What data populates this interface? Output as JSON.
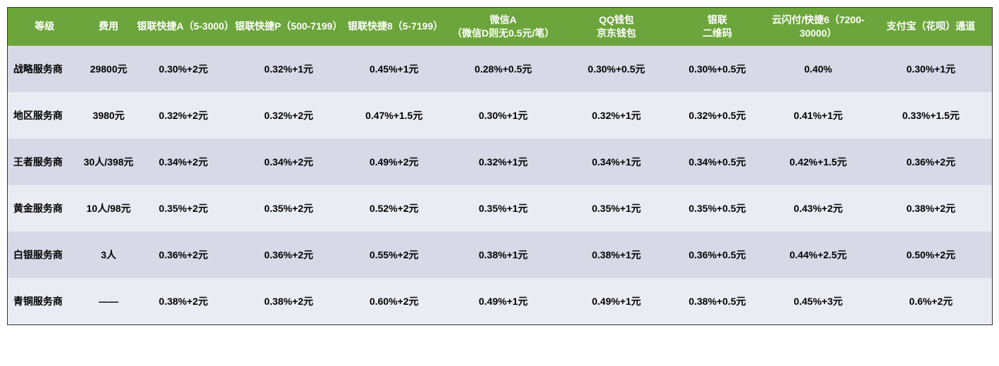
{
  "table": {
    "type": "table",
    "header_bg": "#6ca53b",
    "header_text_color": "#ffffff",
    "row_colors": [
      "#d7d9e6",
      "#eaecf3"
    ],
    "border_color": "#333333",
    "cell_text_color": "#000000",
    "header_fontsize": 14,
    "cell_fontsize": 14,
    "font_weight": "bold",
    "col_widths_pct": [
      7.5,
      5.5,
      9.7,
      11.7,
      9.7,
      12.5,
      10.5,
      10.0,
      10.5,
      12.4
    ],
    "columns": [
      "等级",
      "费用",
      "银联快捷A（5-3000）",
      "银联快捷P（500-7199）",
      "银联快捷8（5-7199）",
      "微信A\n（微信D则无0.5元/笔）",
      "QQ钱包\n京东钱包",
      "银联\n二维码",
      "云闪付/快捷6（7200-30000）",
      "支付宝（花呗）通道"
    ],
    "rows": [
      [
        "战略服务商",
        "29800元",
        "0.30%+2元",
        "0.32%+1元",
        "0.45%+1元",
        "0.28%+0.5元",
        "0.30%+0.5元",
        "0.30%+0.5元",
        "0.40%",
        "0.30%+1元"
      ],
      [
        "地区服务商",
        "3980元",
        "0.32%+2元",
        "0.32%+2元",
        "0.47%+1.5元",
        "0.30%+1元",
        "0.32%+1元",
        "0.32%+0.5元",
        "0.41%+1元",
        "0.33%+1.5元"
      ],
      [
        "王者服务商",
        "30人/398元",
        "0.34%+2元",
        "0.34%+2元",
        "0.49%+2元",
        "0.32%+1元",
        "0.34%+1元",
        "0.34%+0.5元",
        "0.42%+1.5元",
        "0.36%+2元"
      ],
      [
        "黄金服务商",
        "10人/98元",
        "0.35%+2元",
        "0.35%+2元",
        "0.52%+2元",
        "0.35%+1元",
        "0.35%+1元",
        "0.35%+0.5元",
        "0.43%+2元",
        "0.38%+2元"
      ],
      [
        "白银服务商",
        "3人",
        "0.36%+2元",
        "0.36%+2元",
        "0.55%+2元",
        "0.38%+1元",
        "0.38%+1元",
        "0.36%+0.5元",
        "0.44%+2.5元",
        "0.50%+2元"
      ],
      [
        "青铜服务商",
        "——",
        "0.38%+2元",
        "0.38%+2元",
        "0.60%+2元",
        "0.49%+1元",
        "0.49%+1元",
        "0.38%+0.5元",
        "0.45%+3元",
        "0.6%+2元"
      ]
    ]
  }
}
